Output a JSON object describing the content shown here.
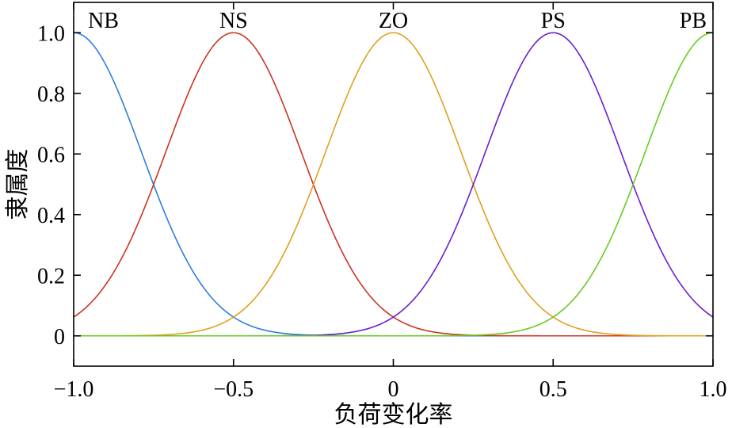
{
  "chart_data": {
    "type": "line",
    "title": "",
    "xlabel": "负荷变化率",
    "ylabel": "隶属度",
    "xlim": [
      -1.0,
      1.0
    ],
    "ylim": [
      -0.1,
      1.1
    ],
    "x_ticks": [
      -1.0,
      -0.5,
      0,
      0.5,
      1.0
    ],
    "x_tick_labels": [
      "−1.0",
      "−0.5",
      "0",
      "0.5",
      "1.0"
    ],
    "y_ticks": [
      0,
      0.2,
      0.4,
      0.6,
      0.8,
      1.0
    ],
    "y_tick_labels": [
      "0",
      "0.2",
      "0.4",
      "0.6",
      "0.8",
      "1.0"
    ],
    "grid": false,
    "legend": "labels above peaks",
    "series": [
      {
        "name": "NB",
        "center": -1.0,
        "sigma": 0.212,
        "color": "#2e7de0"
      },
      {
        "name": "NS",
        "center": -0.5,
        "sigma": 0.212,
        "color": "#cc3322"
      },
      {
        "name": "ZO",
        "center": 0.0,
        "sigma": 0.212,
        "color": "#e0a020"
      },
      {
        "name": "PS",
        "center": 0.5,
        "sigma": 0.212,
        "color": "#6a1fd0"
      },
      {
        "name": "PB",
        "center": 1.0,
        "sigma": 0.212,
        "color": "#66cc22"
      }
    ]
  }
}
